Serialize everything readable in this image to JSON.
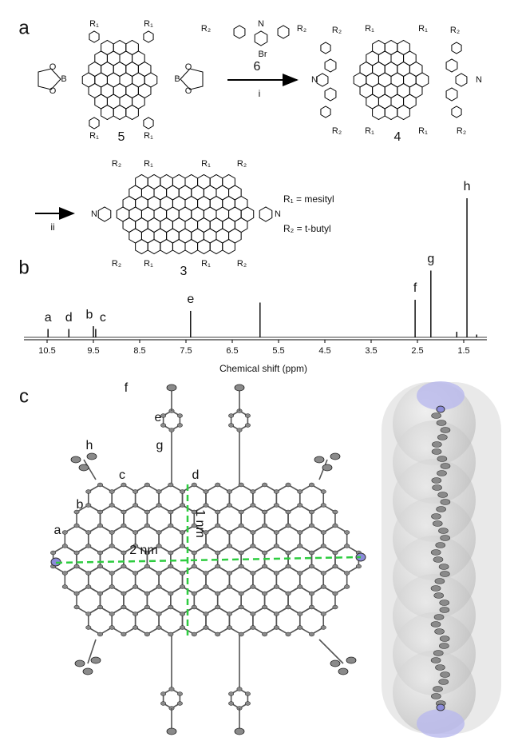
{
  "panel_labels": [
    "a",
    "b",
    "c"
  ],
  "scheme": {
    "compound_5": {
      "number": "5",
      "labels": [
        "R₁",
        "R₁",
        "R₁",
        "R₁",
        "B",
        "B",
        "O",
        "O",
        "O",
        "O"
      ]
    },
    "compound_6": {
      "number": "6",
      "labels": [
        "N",
        "Br",
        "R₂",
        "R₂"
      ]
    },
    "compound_4": {
      "number": "4",
      "labels": [
        "R₁",
        "R₁",
        "R₁",
        "R₁",
        "R₂",
        "R₂",
        "R₂",
        "R₂",
        "N",
        "N"
      ]
    },
    "compound_3": {
      "number": "3",
      "labels": [
        "R₁",
        "R₁",
        "R₁",
        "R₁",
        "R₂",
        "R₂",
        "R₂",
        "R₂",
        "N",
        "N"
      ]
    },
    "conditions": [
      "i",
      "ii"
    ],
    "legend": [
      "R₁ = mesityl",
      "R₂ = t-butyl"
    ]
  },
  "spectrum": {
    "xlabel": "Chemical shift (ppm)",
    "xlim": [
      11.0,
      1.0
    ],
    "xticks": [
      10.5,
      9.5,
      8.5,
      7.5,
      6.5,
      5.5,
      4.5,
      3.5,
      2.5,
      1.5
    ],
    "ylim": [
      0,
      100
    ],
    "peak_labels": [
      "a",
      "d",
      "b",
      "c",
      "e",
      null,
      "f",
      "g",
      null,
      "h",
      null
    ],
    "peak_ppm": [
      10.48,
      10.03,
      9.5,
      9.45,
      7.4,
      5.9,
      2.55,
      2.21,
      1.65,
      1.43,
      1.22
    ],
    "peak_heights": [
      6,
      6,
      8,
      6,
      19,
      25,
      27,
      48,
      4,
      100,
      2
    ]
  },
  "crystal": {
    "labels": [
      "f",
      "e",
      "g",
      "h",
      "c",
      "d",
      "b",
      "a"
    ],
    "scale_labels": [
      "2 nm",
      "1 nm"
    ]
  }
}
